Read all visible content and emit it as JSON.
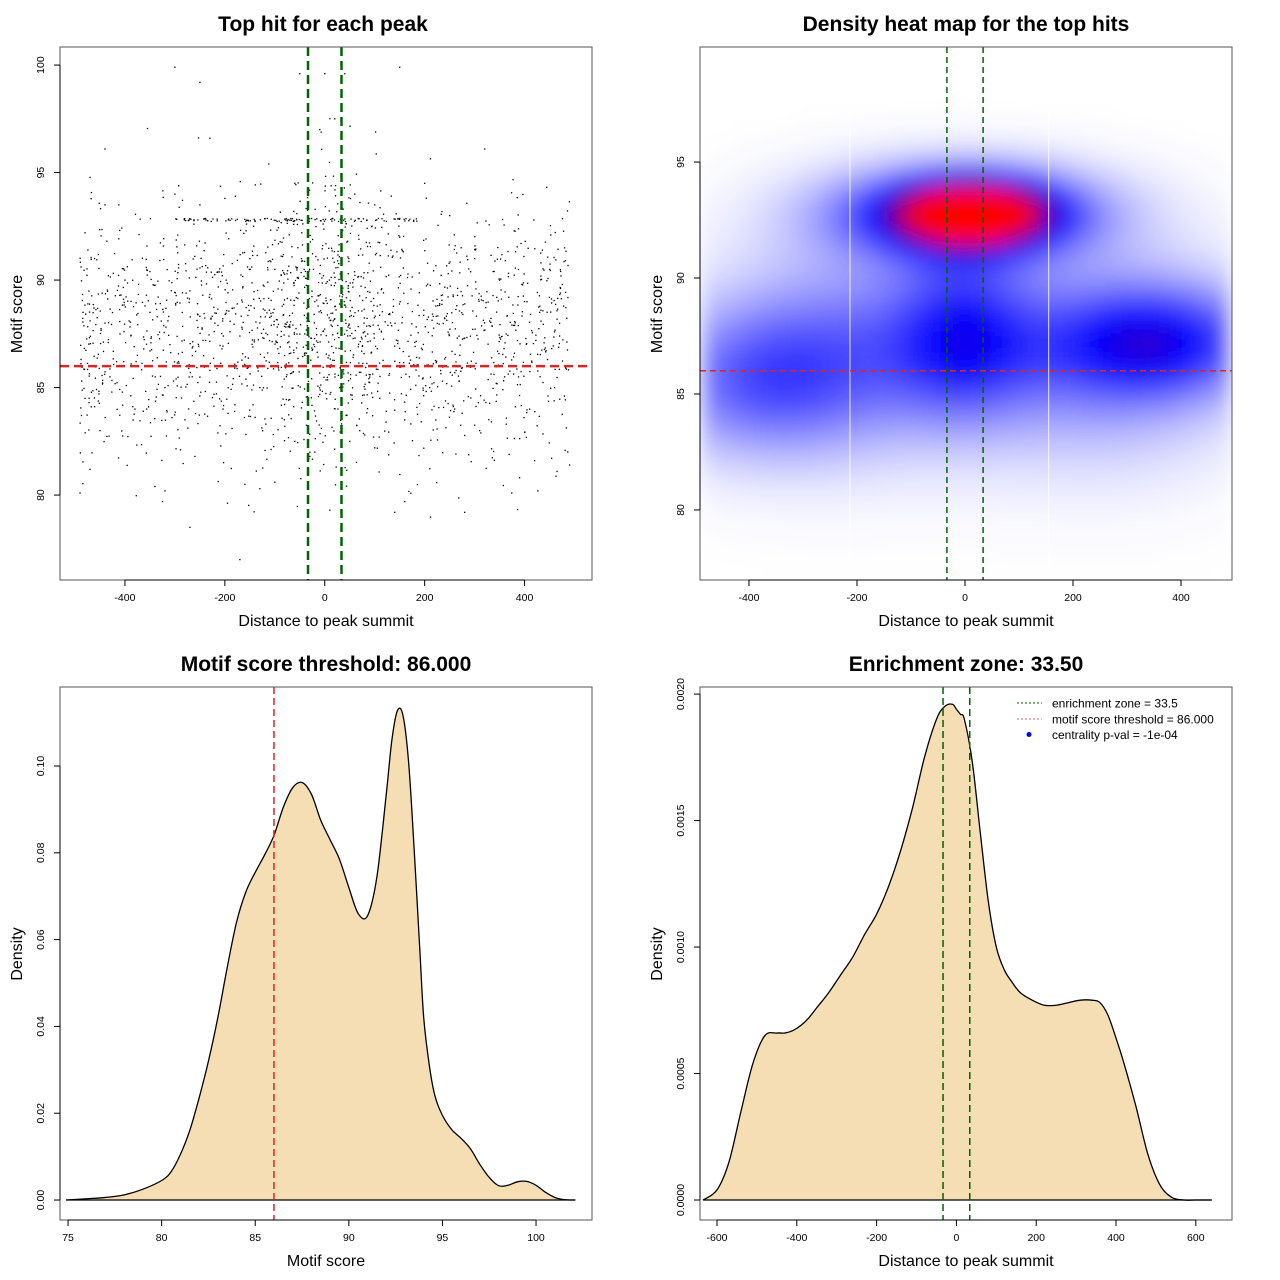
{
  "chart_data": [
    {
      "id": "scatter",
      "type": "scatter",
      "title": "Top hit for each peak",
      "xlabel": "Distance to peak summit",
      "ylabel": "Motif score",
      "xlim": [
        -530,
        535
      ],
      "ylim": [
        76.05,
        100.84
      ],
      "xticks": [
        -400,
        -200,
        0,
        200,
        400
      ],
      "yticks": [
        80,
        85,
        90,
        95,
        100
      ],
      "point_count_approx": 2000,
      "x_range_points": [
        -490,
        490
      ],
      "y_center_mode": 87.5,
      "dense_row_y": 92.8,
      "dense_row_x": [
        -300,
        190
      ],
      "hlines": [
        {
          "y": 86.0,
          "color": "#d62728",
          "style": "dashed",
          "label": "motif score threshold"
        }
      ],
      "vlines": [
        {
          "x": -33.5,
          "color": "#006400",
          "style": "dashed"
        },
        {
          "x": 33.5,
          "color": "#006400",
          "style": "dashed"
        }
      ],
      "sample_points": [
        [
          -300,
          99.9
        ],
        [
          -250,
          99.2
        ],
        [
          150,
          99.9
        ],
        [
          -50,
          99.6
        ],
        [
          0,
          99.6
        ],
        [
          40,
          99.6
        ],
        [
          -230,
          96.6
        ],
        [
          -10,
          97.0
        ],
        [
          20,
          97.5
        ],
        [
          320,
          96.1
        ],
        [
          -440,
          96.1
        ],
        [
          -480,
          92.2
        ],
        [
          -440,
          93.5
        ],
        [
          -400,
          90.0
        ],
        [
          -350,
          88.5
        ],
        [
          -300,
          94.0
        ],
        [
          -250,
          93.5
        ],
        [
          -200,
          93.8
        ],
        [
          -150,
          91.0
        ],
        [
          -100,
          90.5
        ],
        [
          -60,
          94.5
        ],
        [
          60,
          94.0
        ],
        [
          100,
          93.5
        ],
        [
          150,
          92.0
        ],
        [
          200,
          94.5
        ],
        [
          250,
          93.0
        ],
        [
          300,
          91.0
        ],
        [
          350,
          90.0
        ],
        [
          400,
          89.0
        ],
        [
          450,
          90.5
        ],
        [
          480,
          91.5
        ],
        [
          -470,
          86.0
        ],
        [
          -430,
          85.5
        ],
        [
          -380,
          84.0
        ],
        [
          -320,
          85.0
        ],
        [
          -280,
          83.5
        ],
        [
          -230,
          85.8
        ],
        [
          -180,
          84.2
        ],
        [
          -130,
          85.0
        ],
        [
          -80,
          83.2
        ],
        [
          -40,
          86.5
        ],
        [
          30,
          85.0
        ],
        [
          70,
          83.0
        ],
        [
          110,
          84.5
        ],
        [
          160,
          83.5
        ],
        [
          210,
          85.0
        ],
        [
          260,
          84.0
        ],
        [
          310,
          83.0
        ],
        [
          360,
          85.5
        ],
        [
          410,
          84.0
        ],
        [
          460,
          85.0
        ],
        [
          -490,
          80.1
        ],
        [
          -470,
          81.2
        ],
        [
          -340,
          80.4
        ],
        [
          -320,
          80.2
        ],
        [
          -260,
          81.8
        ],
        [
          -160,
          80.5
        ],
        [
          -130,
          80.3
        ],
        [
          -100,
          80.6
        ],
        [
          10,
          79.3
        ],
        [
          140,
          79.2
        ],
        [
          160,
          79.7
        ],
        [
          280,
          79.2
        ],
        [
          -270,
          78.5
        ],
        [
          -170,
          77.0
        ],
        [
          420,
          81.6
        ],
        [
          465,
          81.1
        ],
        [
          490,
          81.4
        ],
        [
          -440,
          88.0
        ],
        [
          -410,
          87.5
        ],
        [
          -360,
          88.8
        ],
        [
          -310,
          87.0
        ],
        [
          -270,
          89.5
        ],
        [
          -220,
          88.0
        ],
        [
          -170,
          87.4
        ],
        [
          -120,
          88.6
        ],
        [
          -70,
          87.8
        ],
        [
          -20,
          89.0
        ],
        [
          20,
          88.2
        ],
        [
          80,
          87.6
        ],
        [
          130,
          88.4
        ],
        [
          180,
          87.1
        ],
        [
          230,
          88.9
        ],
        [
          280,
          87.3
        ],
        [
          330,
          88.1
        ],
        [
          380,
          87.9
        ],
        [
          430,
          88.5
        ],
        [
          470,
          87.4
        ],
        [
          -480,
          84.5
        ],
        [
          -450,
          83.0
        ],
        [
          -20,
          82.0
        ],
        [
          50,
          82.5
        ],
        [
          80,
          82.8
        ],
        [
          100,
          82.2
        ],
        [
          -60,
          82.5
        ],
        [
          -30,
          81.8
        ]
      ]
    },
    {
      "id": "heatmap",
      "type": "heatmap",
      "title": "Density heat map for the top hits",
      "xlabel": "Distance to peak summit",
      "ylabel": "Motif score",
      "xlim": [
        -490.7,
        494.4
      ],
      "ylim": [
        76.98,
        99.96
      ],
      "xticks": [
        -400,
        -200,
        0,
        200,
        400
      ],
      "yticks": [
        80,
        85,
        90,
        95
      ],
      "colorscale": [
        "#ffffff",
        "#0000ff",
        "#ff0000"
      ],
      "hotspots": [
        {
          "x": 15,
          "y": 92.8,
          "sx": 90,
          "sy": 0.9,
          "level": 1.0,
          "note": "red core"
        },
        {
          "x": 0,
          "y": 92.8,
          "sx": 170,
          "sy": 1.35,
          "level": 0.6
        },
        {
          "x": 360,
          "y": 87.3,
          "sx": 130,
          "sy": 1.6,
          "level": 0.42
        },
        {
          "x": 0,
          "y": 87.5,
          "sx": 90,
          "sy": 2.3,
          "level": 0.35
        },
        {
          "x": -380,
          "y": 85.5,
          "sx": 140,
          "sy": 2.2,
          "level": 0.28
        },
        {
          "x": -200,
          "y": 87.0,
          "sx": 180,
          "sy": 3.0,
          "level": 0.25
        },
        {
          "x": 250,
          "y": 86.5,
          "sx": 180,
          "sy": 3.0,
          "level": 0.25
        }
      ],
      "white_vlines": [
        -213,
        155
      ],
      "hlines": [
        {
          "y": 86.0,
          "color": "#d62728",
          "style": "dashed"
        }
      ],
      "vlines": [
        {
          "x": -33.5,
          "color": "#006400",
          "style": "dashed"
        },
        {
          "x": 33.5,
          "color": "#006400",
          "style": "dashed"
        }
      ]
    },
    {
      "id": "score-density",
      "type": "area",
      "title": "Motif score threshold: 86.000",
      "xlabel": "Motif score",
      "ylabel": "Density",
      "xlim": [
        74.57,
        102.99
      ],
      "ylim": [
        -0.0046,
        0.1182
      ],
      "xticks": [
        75,
        80,
        85,
        90,
        95,
        100
      ],
      "yticks": [
        0.0,
        0.02,
        0.04,
        0.06,
        0.08,
        0.1
      ],
      "ytick_labels": [
        "0.00",
        "0.02",
        "0.04",
        "0.06",
        "0.08",
        "0.10"
      ],
      "fill": "#f5deb3",
      "x": [
        74.9,
        76,
        77,
        78,
        79,
        80,
        80.5,
        81,
        81.5,
        82,
        82.5,
        83,
        83.5,
        84,
        84.5,
        85,
        85.5,
        86,
        86.5,
        87,
        87.5,
        88,
        88.5,
        89,
        89.5,
        90,
        90.5,
        91,
        91.5,
        92,
        92.3,
        92.6,
        92.9,
        93.2,
        93.5,
        93.8,
        94,
        94.3,
        94.6,
        95,
        95.5,
        96,
        96.5,
        97,
        97.5,
        98,
        98.5,
        99,
        99.5,
        100,
        100.5,
        101,
        101.5,
        102.1
      ],
      "values": [
        0.0,
        0.0003,
        0.0006,
        0.0012,
        0.0025,
        0.0045,
        0.0065,
        0.0105,
        0.016,
        0.0235,
        0.032,
        0.042,
        0.0535,
        0.064,
        0.071,
        0.0755,
        0.0795,
        0.084,
        0.0905,
        0.095,
        0.0962,
        0.0935,
        0.0875,
        0.083,
        0.0785,
        0.072,
        0.066,
        0.0655,
        0.0745,
        0.0935,
        0.106,
        0.1128,
        0.1115,
        0.1005,
        0.08,
        0.057,
        0.042,
        0.031,
        0.024,
        0.0195,
        0.0162,
        0.0142,
        0.0118,
        0.0082,
        0.0052,
        0.0033,
        0.0034,
        0.0042,
        0.0043,
        0.0034,
        0.0018,
        0.0006,
        0.0001,
        0.0
      ],
      "vlines": [
        {
          "x": 86.0,
          "color": "#d62728",
          "style": "dashed"
        }
      ]
    },
    {
      "id": "distance-density",
      "type": "area",
      "title": "Enrichment zone: 33.50",
      "xlabel": "Distance to peak summit",
      "ylabel": "Density",
      "xlim": [
        -642.6,
        690.7
      ],
      "ylim": [
        -7.9e-05,
        0.002028
      ],
      "xticks": [
        -600,
        -400,
        -200,
        0,
        200,
        400,
        600
      ],
      "yticks": [
        0.0,
        0.0005,
        0.001,
        0.0015,
        0.002
      ],
      "ytick_labels": [
        "0.0000",
        "0.0005",
        "0.0010",
        "0.0015",
        "0.0020"
      ],
      "fill": "#f5deb3",
      "x": [
        -635,
        -600,
        -570,
        -540,
        -510,
        -480,
        -450,
        -430,
        -410,
        -390,
        -370,
        -350,
        -320,
        -290,
        -260,
        -230,
        -200,
        -170,
        -140,
        -110,
        -80,
        -50,
        -30,
        -10,
        0,
        10,
        20,
        40,
        60,
        80,
        100,
        120,
        140,
        160,
        190,
        220,
        250,
        280,
        310,
        340,
        360,
        380,
        400,
        420,
        450,
        480,
        510,
        540,
        570,
        600,
        640
      ],
      "values": [
        0.0,
        4e-05,
        0.00015,
        0.00035,
        0.00054,
        0.00065,
        0.00066,
        0.00066,
        0.00067,
        0.00069,
        0.00072,
        0.00076,
        0.00082,
        0.00089,
        0.00096,
        0.00105,
        0.00113,
        0.00124,
        0.00138,
        0.00155,
        0.00175,
        0.0019,
        0.00195,
        0.00196,
        0.00194,
        0.00192,
        0.0019,
        0.00173,
        0.00145,
        0.00118,
        0.001,
        0.00091,
        0.00086,
        0.00082,
        0.00079,
        0.00077,
        0.00077,
        0.00078,
        0.00079,
        0.00079,
        0.00078,
        0.00073,
        0.00064,
        0.00054,
        0.00037,
        0.00018,
        6e-05,
        1e-05,
        0.0,
        0.0,
        0.0
      ],
      "vlines": [
        {
          "x": -33.5,
          "color": "#006400",
          "style": "dashed"
        },
        {
          "x": 33.5,
          "color": "#006400",
          "style": "dashed"
        }
      ],
      "legend": {
        "position": "top-right",
        "entries": [
          {
            "label": "enrichment zone = 33.5",
            "color": "#006400",
            "symbol": "dotted-line"
          },
          {
            "label": "motif score threshold = 86.000",
            "color": "#d62728",
            "symbol": "dotted-line"
          },
          {
            "label": "centrality p-val = -1e-04",
            "color": "#0000ff",
            "symbol": "dot"
          }
        ]
      }
    }
  ]
}
